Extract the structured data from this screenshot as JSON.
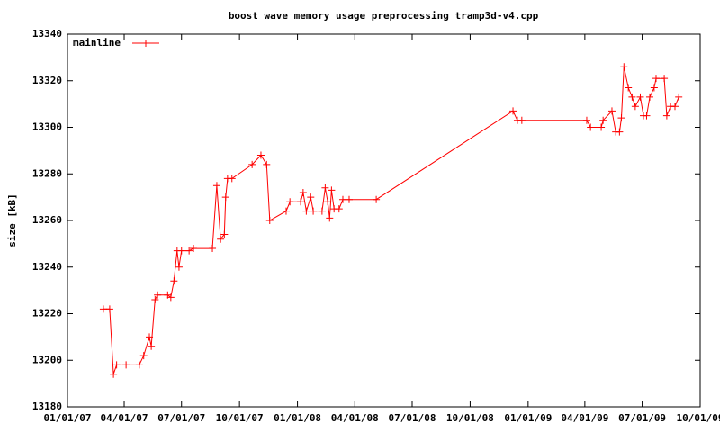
{
  "chart_data": {
    "type": "line",
    "title": "boost wave memory usage preprocessing tramp3d-v4.cpp",
    "y_label": "size [kB]",
    "legend": "top-left",
    "grid": false,
    "marker": "plus",
    "xlim": [
      "2007-01-01",
      "2009-10-01"
    ],
    "xticks": [
      {
        "value": "2007-01-01",
        "label": "01/01/07"
      },
      {
        "value": "2007-04-01",
        "label": "04/01/07"
      },
      {
        "value": "2007-07-01",
        "label": "07/01/07"
      },
      {
        "value": "2007-10-01",
        "label": "10/01/07"
      },
      {
        "value": "2008-01-01",
        "label": "01/01/08"
      },
      {
        "value": "2008-04-01",
        "label": "04/01/08"
      },
      {
        "value": "2008-07-01",
        "label": "07/01/08"
      },
      {
        "value": "2008-10-01",
        "label": "10/01/08"
      },
      {
        "value": "2009-01-01",
        "label": "01/01/09"
      },
      {
        "value": "2009-04-01",
        "label": "04/01/09"
      },
      {
        "value": "2009-07-01",
        "label": "07/01/09"
      },
      {
        "value": "2009-10-01",
        "label": "10/01/09"
      }
    ],
    "ylim": [
      13180,
      13340
    ],
    "yticks": [
      13180,
      13200,
      13220,
      13240,
      13260,
      13280,
      13300,
      13320,
      13340
    ],
    "x": [
      "2007-02-27",
      "2007-03-09",
      "2007-03-15",
      "2007-03-20",
      "2007-04-04",
      "2007-04-25",
      "2007-05-02",
      "2007-05-11",
      "2007-05-14",
      "2007-05-20",
      "2007-05-24",
      "2007-06-09",
      "2007-06-14",
      "2007-06-19",
      "2007-06-24",
      "2007-06-27",
      "2007-07-01",
      "2007-07-13",
      "2007-07-20",
      "2007-08-19",
      "2007-08-26",
      "2007-09-01",
      "2007-09-07",
      "2007-09-09",
      "2007-09-12",
      "2007-09-19",
      "2007-10-21",
      "2007-11-04",
      "2007-11-13",
      "2007-11-18",
      "2007-12-14",
      "2007-12-20",
      "2008-01-06",
      "2008-01-10",
      "2008-01-15",
      "2008-01-22",
      "2008-01-26",
      "2008-02-09",
      "2008-02-14",
      "2008-02-18",
      "2008-02-21",
      "2008-02-24",
      "2008-02-28",
      "2008-03-07",
      "2008-03-13",
      "2008-03-23",
      "2008-05-05",
      "2008-12-08",
      "2008-12-15",
      "2008-12-22",
      "2009-04-04",
      "2009-04-10",
      "2009-04-27",
      "2009-04-30",
      "2009-05-14",
      "2009-05-20",
      "2009-05-26",
      "2009-05-29",
      "2009-06-02",
      "2009-06-09",
      "2009-06-15",
      "2009-06-20",
      "2009-06-28",
      "2009-07-03",
      "2009-07-08",
      "2009-07-13",
      "2009-07-20",
      "2009-07-23",
      "2009-08-05",
      "2009-08-09",
      "2009-08-15",
      "2009-08-22",
      "2009-08-28"
    ],
    "series": [
      {
        "name": "mainline",
        "color": "#ff0000",
        "values": [
          13222,
          13222,
          13194,
          13198,
          13198,
          13198,
          13202,
          13210,
          13206,
          13226,
          13228,
          13228,
          13227,
          13234,
          13247,
          13240,
          13247,
          13247,
          13248,
          13248,
          13275,
          13252,
          13254,
          13270,
          13278,
          13278,
          13284,
          13288,
          13284,
          13260,
          13264,
          13268,
          13268,
          13272,
          13264,
          13270,
          13264,
          13264,
          13274,
          13268,
          13261,
          13273,
          13265,
          13265,
          13269,
          13269,
          13269,
          13307,
          13303,
          13303,
          13303,
          13300,
          13300,
          13303,
          13307,
          13298,
          13298,
          13304,
          13326,
          13317,
          13313,
          13309,
          13313,
          13305,
          13305,
          13313,
          13317,
          13321,
          13321,
          13305,
          13309,
          13309,
          13313
        ]
      }
    ]
  }
}
